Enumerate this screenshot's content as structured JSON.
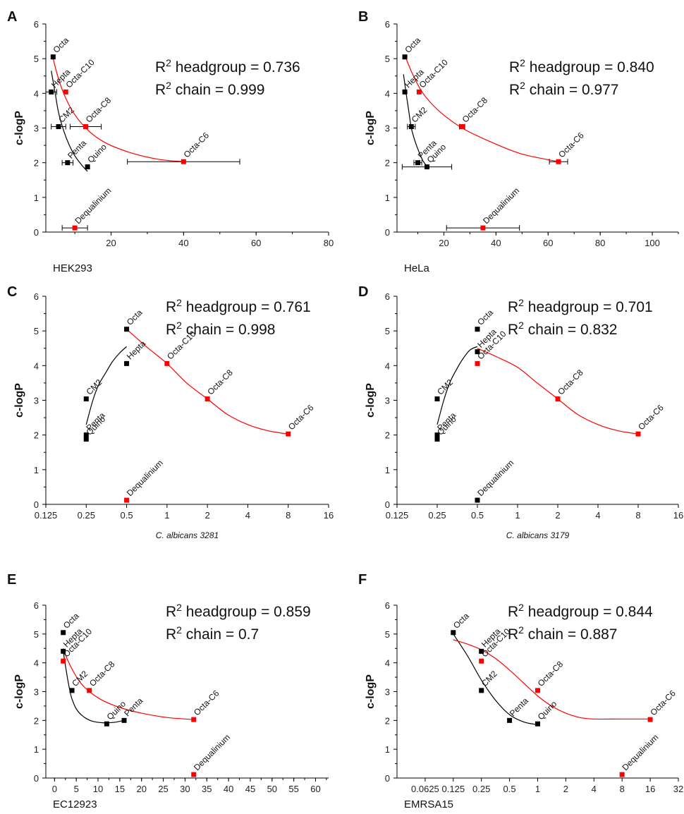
{
  "figure": {
    "panels": [
      {
        "label": "A",
        "xlabel": "HEK293",
        "ylabel": "c-logP",
        "r2_head_text": "headgroup = 0.736",
        "r2_chain_text": "chain = 0.999"
      },
      {
        "label": "B",
        "xlabel": "HeLa",
        "ylabel": "c-logP",
        "r2_head_text": "headgroup = 0.840",
        "r2_chain_text": "chain = 0.977"
      },
      {
        "label": "C",
        "xlabel": "C. albicans 3281",
        "ylabel": "c-logP",
        "r2_head_text": "headgroup = 0.761",
        "r2_chain_text": "chain = 0.998"
      },
      {
        "label": "D",
        "xlabel": "C. albicans 3179",
        "ylabel": "c-logP",
        "r2_head_text": "headgroup = 0.701",
        "r2_chain_text": "chain = 0.832"
      },
      {
        "label": "E",
        "xlabel": "EC12923",
        "ylabel": "c-logP",
        "r2_head_text": "headgroup = 0.859",
        "r2_chain_text": "chain = 0.7"
      },
      {
        "label": "F",
        "xlabel": "EMRSA15",
        "ylabel": "c-logP",
        "r2_head_text": "headgroup = 0.844",
        "r2_chain_text": "chain = 0.887"
      }
    ]
  },
  "chart_data": [
    {
      "type": "scatter",
      "panel": "A",
      "xlabel": "HEK293",
      "ylabel": "c-logP",
      "xscale": "linear",
      "xlim": [
        2,
        80
      ],
      "ylim": [
        0,
        6
      ],
      "xticks": [
        20,
        40,
        60,
        80
      ],
      "xtick_labels": [
        "20",
        "40",
        "60",
        "80"
      ],
      "yticks": [
        0,
        1,
        2,
        3,
        4,
        5,
        6
      ],
      "colors": {
        "headgroup": "#000000",
        "chain": "#ff0000"
      },
      "annotations": [
        "R2 headgroup = 0.736",
        "R2 chain = 0.999"
      ],
      "points": [
        {
          "name": "Octa",
          "x": 4,
          "y": 5.05,
          "group": "headgroup"
        },
        {
          "name": "Hepta",
          "x": 3.5,
          "y": 4.04,
          "group": "headgroup",
          "xerr": 1.5
        },
        {
          "name": "CM2",
          "x": 5.5,
          "y": 3.04,
          "group": "headgroup",
          "xerr": 2
        },
        {
          "name": "Penta",
          "x": 8,
          "y": 2.0,
          "group": "headgroup",
          "xerr": 1.5
        },
        {
          "name": "Quino",
          "x": 13.5,
          "y": 1.88,
          "group": "headgroup"
        },
        {
          "name": "Octa-C10",
          "x": 7.5,
          "y": 4.04,
          "group": "chain"
        },
        {
          "name": "Octa-C8",
          "x": 13,
          "y": 3.04,
          "group": "chain",
          "xerr": 4.3
        },
        {
          "name": "Octa-C6",
          "x": 40,
          "y": 2.03,
          "group": "chain",
          "xerr": 15.5
        },
        {
          "name": "Dequalinium",
          "x": 10,
          "y": 0.12,
          "group": "chain",
          "xerr": 3.5
        }
      ],
      "fits": [
        {
          "group": "headgroup",
          "x": [
            3.5,
            4.5,
            5.5,
            7,
            8.5,
            10,
            12,
            13.5
          ],
          "y": [
            4.65,
            4.05,
            3.45,
            2.9,
            2.5,
            2.2,
            1.92,
            1.75
          ]
        },
        {
          "group": "chain",
          "x": [
            4,
            6,
            9,
            13,
            18,
            25,
            33,
            40
          ],
          "y": [
            5.0,
            4.25,
            3.55,
            3.0,
            2.6,
            2.3,
            2.1,
            2.03
          ]
        }
      ]
    },
    {
      "type": "scatter",
      "panel": "B",
      "xlabel": "HeLa",
      "ylabel": "c-logP",
      "xscale": "linear",
      "xlim": [
        2,
        110
      ],
      "ylim": [
        0,
        6
      ],
      "xticks": [
        20,
        40,
        60,
        80,
        100
      ],
      "xtick_labels": [
        "20",
        "40",
        "60",
        "80",
        "100"
      ],
      "yticks": [
        0,
        1,
        2,
        3,
        4,
        5,
        6
      ],
      "colors": {
        "headgroup": "#000000",
        "chain": "#ff0000"
      },
      "annotations": [
        "R2 headgroup = 0.840",
        "R2 chain = 0.977"
      ],
      "points": [
        {
          "name": "Octa",
          "x": 5,
          "y": 5.05,
          "group": "headgroup"
        },
        {
          "name": "Hepta",
          "x": 5,
          "y": 4.04,
          "group": "headgroup"
        },
        {
          "name": "CM2",
          "x": 7.5,
          "y": 3.04,
          "group": "headgroup",
          "xerr": 1.5
        },
        {
          "name": "Penta",
          "x": 10,
          "y": 2.0,
          "group": "headgroup",
          "xerr": 1.5
        },
        {
          "name": "Quino",
          "x": 13.5,
          "y": 1.88,
          "group": "headgroup",
          "xerr": 9.5
        },
        {
          "name": "Octa-C10",
          "x": 10.5,
          "y": 4.04,
          "group": "chain"
        },
        {
          "name": "Octa-C8",
          "x": 27,
          "y": 3.04,
          "group": "chain",
          "xerr": 1
        },
        {
          "name": "Octa-C6",
          "x": 64,
          "y": 2.03,
          "group": "chain",
          "xerr": 3.5
        },
        {
          "name": "Dequalinium",
          "x": 35,
          "y": 0.12,
          "group": "chain",
          "xerr": 14
        }
      ],
      "fits": [
        {
          "group": "headgroup",
          "x": [
            4.5,
            5.5,
            6.5,
            7.5,
            9,
            10.5,
            12,
            13.5
          ],
          "y": [
            4.55,
            4.0,
            3.5,
            3.0,
            2.6,
            2.3,
            2.05,
            1.9
          ]
        },
        {
          "group": "chain",
          "x": [
            5,
            8,
            12,
            18,
            27,
            38,
            50,
            64
          ],
          "y": [
            5.1,
            4.55,
            4.0,
            3.5,
            3.0,
            2.6,
            2.25,
            2.03
          ]
        }
      ]
    },
    {
      "type": "scatter",
      "panel": "C",
      "xlabel": "C. albicans 3281",
      "ylabel": "c-logP",
      "xscale": "log2",
      "xlim": [
        0.125,
        16
      ],
      "ylim": [
        0,
        6
      ],
      "xticks": [
        0.125,
        0.25,
        0.5,
        1,
        2,
        4,
        8,
        16
      ],
      "xtick_labels": [
        "0.125",
        "0.25",
        "0.5",
        "1",
        "2",
        "4",
        "8",
        "16"
      ],
      "yticks": [
        0,
        1,
        2,
        3,
        4,
        5,
        6
      ],
      "colors": {
        "headgroup": "#000000",
        "chain": "#ff0000"
      },
      "annotations": [
        "R2 headgroup = 0.761",
        "R2 chain = 0.998"
      ],
      "points": [
        {
          "name": "Octa",
          "x": 0.5,
          "y": 5.05,
          "group": "headgroup"
        },
        {
          "name": "Hepta",
          "x": 0.5,
          "y": 4.06,
          "group": "headgroup"
        },
        {
          "name": "CM2",
          "x": 0.25,
          "y": 3.04,
          "group": "headgroup"
        },
        {
          "name": "Penta",
          "x": 0.25,
          "y": 2.0,
          "group": "headgroup"
        },
        {
          "name": "Quino",
          "x": 0.25,
          "y": 1.88,
          "group": "headgroup"
        },
        {
          "name": "Octa-C10",
          "x": 1,
          "y": 4.06,
          "group": "chain"
        },
        {
          "name": "Octa-C8",
          "x": 2,
          "y": 3.04,
          "group": "chain"
        },
        {
          "name": "Octa-C6",
          "x": 8,
          "y": 2.03,
          "group": "chain"
        },
        {
          "name": "Dequalinium",
          "x": 0.5,
          "y": 0.12,
          "group": "chain"
        }
      ],
      "fits": [
        {
          "group": "headgroup",
          "x": [
            0.25,
            0.28,
            0.31,
            0.35,
            0.39,
            0.44,
            0.5
          ],
          "y": [
            2.3,
            3.0,
            3.45,
            3.8,
            4.1,
            4.35,
            4.55
          ]
        },
        {
          "group": "chain",
          "x": [
            0.5,
            0.7,
            1,
            1.4,
            2,
            2.8,
            4,
            5.7,
            8
          ],
          "y": [
            5.05,
            4.55,
            4.06,
            3.5,
            3.04,
            2.6,
            2.3,
            2.12,
            2.03
          ]
        }
      ]
    },
    {
      "type": "scatter",
      "panel": "D",
      "xlabel": "C. albicans 3179",
      "ylabel": "c-logP",
      "xscale": "log2",
      "xlim": [
        0.125,
        16
      ],
      "ylim": [
        0,
        6
      ],
      "xticks": [
        0.125,
        0.25,
        0.5,
        1,
        2,
        4,
        8,
        16
      ],
      "xtick_labels": [
        "0.125",
        "0.25",
        "0.5",
        "1",
        "2",
        "4",
        "8",
        "16"
      ],
      "yticks": [
        0,
        1,
        2,
        3,
        4,
        5,
        6
      ],
      "colors": {
        "headgroup": "#000000",
        "chain": "#ff0000"
      },
      "annotations": [
        "R2 headgroup = 0.701",
        "R2 chain = 0.832"
      ],
      "points": [
        {
          "name": "Octa",
          "x": 0.5,
          "y": 5.05,
          "group": "headgroup"
        },
        {
          "name": "Hepta",
          "x": 0.5,
          "y": 4.4,
          "group": "headgroup"
        },
        {
          "name": "CM2",
          "x": 0.25,
          "y": 3.04,
          "group": "headgroup"
        },
        {
          "name": "Penta",
          "x": 0.25,
          "y": 2.0,
          "group": "headgroup"
        },
        {
          "name": "Quino",
          "x": 0.25,
          "y": 1.88,
          "group": "headgroup"
        },
        {
          "name": "Dequalinium",
          "x": 0.5,
          "y": 0.12,
          "group": "headgroup"
        },
        {
          "name": "Octa-C10",
          "x": 0.5,
          "y": 4.06,
          "group": "chain"
        },
        {
          "name": "Octa-C8",
          "x": 2,
          "y": 3.04,
          "group": "chain"
        },
        {
          "name": "Octa-C6",
          "x": 8,
          "y": 2.03,
          "group": "chain"
        }
      ],
      "fits": [
        {
          "group": "headgroup",
          "x": [
            0.25,
            0.28,
            0.31,
            0.35,
            0.39,
            0.44,
            0.5
          ],
          "y": [
            2.3,
            3.0,
            3.5,
            3.9,
            4.2,
            4.45,
            4.55
          ]
        },
        {
          "group": "chain",
          "x": [
            0.5,
            0.7,
            1,
            1.4,
            2,
            2.8,
            4,
            5.7,
            8
          ],
          "y": [
            4.5,
            4.25,
            3.95,
            3.5,
            3.04,
            2.6,
            2.3,
            2.12,
            2.03
          ]
        }
      ]
    },
    {
      "type": "scatter",
      "panel": "E",
      "xlabel": "EC12923",
      "ylabel": "c-logP",
      "xscale": "linear",
      "xlim": [
        -2,
        63
      ],
      "ylim": [
        0,
        6
      ],
      "xticks": [
        0,
        5,
        10,
        15,
        20,
        25,
        30,
        35,
        40,
        45,
        50,
        55,
        60
      ],
      "xtick_labels": [
        "0",
        "5",
        "10",
        "15",
        "20",
        "25",
        "30",
        "35",
        "40",
        "45",
        "50",
        "55",
        "60"
      ],
      "yticks": [
        0,
        1,
        2,
        3,
        4,
        5,
        6
      ],
      "colors": {
        "headgroup": "#000000",
        "chain": "#ff0000"
      },
      "annotations": [
        "R2 headgroup = 0.859",
        "R2 chain = 0.7"
      ],
      "points": [
        {
          "name": "Octa",
          "x": 2,
          "y": 5.05,
          "group": "headgroup"
        },
        {
          "name": "Hepta",
          "x": 2,
          "y": 4.4,
          "group": "headgroup"
        },
        {
          "name": "CM2",
          "x": 4,
          "y": 3.04,
          "group": "headgroup"
        },
        {
          "name": "Quino",
          "x": 12,
          "y": 1.88,
          "group": "headgroup"
        },
        {
          "name": "Penta",
          "x": 16,
          "y": 2.0,
          "group": "headgroup"
        },
        {
          "name": "Octa-C10",
          "x": 2,
          "y": 4.06,
          "group": "chain"
        },
        {
          "name": "Octa-C8",
          "x": 8,
          "y": 3.04,
          "group": "chain"
        },
        {
          "name": "Octa-C6",
          "x": 32,
          "y": 2.03,
          "group": "chain"
        },
        {
          "name": "Dequalinium",
          "x": 32,
          "y": 0.12,
          "group": "chain"
        }
      ],
      "fits": [
        {
          "group": "headgroup",
          "x": [
            2,
            2.5,
            3,
            3.5,
            4,
            5,
            6.5,
            8.5,
            11,
            13.5,
            16
          ],
          "y": [
            4.4,
            3.9,
            3.45,
            3.05,
            2.75,
            2.4,
            2.15,
            1.98,
            1.92,
            1.93,
            2.0
          ]
        },
        {
          "group": "chain",
          "x": [
            2,
            3,
            4.5,
            6,
            8,
            11,
            15,
            20,
            26,
            32
          ],
          "y": [
            4.5,
            4.1,
            3.65,
            3.3,
            3.0,
            2.7,
            2.45,
            2.25,
            2.1,
            2.03
          ]
        }
      ]
    },
    {
      "type": "scatter",
      "panel": "F",
      "xlabel": "EMRSA15",
      "ylabel": "c-logP",
      "xscale": "log2",
      "xlim": [
        0.03125,
        32
      ],
      "ylim": [
        0,
        6
      ],
      "xticks": [
        0.0625,
        0.125,
        0.25,
        0.5,
        1,
        2,
        4,
        8,
        16,
        32
      ],
      "xtick_labels": [
        "0.0625",
        "0.125",
        "0.25",
        "0.5",
        "1",
        "2",
        "4",
        "8",
        "16",
        "32"
      ],
      "yticks": [
        0,
        1,
        2,
        3,
        4,
        5,
        6
      ],
      "colors": {
        "headgroup": "#000000",
        "chain": "#ff0000"
      },
      "annotations": [
        "R2 headgroup = 0.844",
        "R2 chain = 0.887"
      ],
      "points": [
        {
          "name": "Octa",
          "x": 0.125,
          "y": 5.05,
          "group": "headgroup"
        },
        {
          "name": "Hepta",
          "x": 0.25,
          "y": 4.4,
          "group": "headgroup"
        },
        {
          "name": "CM2",
          "x": 0.25,
          "y": 3.04,
          "group": "headgroup"
        },
        {
          "name": "Penta",
          "x": 0.5,
          "y": 2.0,
          "group": "headgroup"
        },
        {
          "name": "Quino",
          "x": 1,
          "y": 1.88,
          "group": "headgroup"
        },
        {
          "name": "Octa-C10",
          "x": 0.25,
          "y": 4.06,
          "group": "chain"
        },
        {
          "name": "Octa-C8",
          "x": 1,
          "y": 3.04,
          "group": "chain"
        },
        {
          "name": "Octa-C6",
          "x": 16,
          "y": 2.03,
          "group": "chain"
        },
        {
          "name": "Dequalinium",
          "x": 8,
          "y": 0.12,
          "group": "chain"
        }
      ],
      "fits": [
        {
          "group": "headgroup",
          "x": [
            0.125,
            0.177,
            0.25,
            0.354,
            0.5,
            0.707,
            1
          ],
          "y": [
            5.0,
            4.25,
            3.4,
            2.7,
            2.2,
            1.95,
            1.85
          ]
        },
        {
          "group": "chain",
          "x": [
            0.125,
            0.177,
            0.25,
            0.354,
            0.5,
            0.707,
            1,
            1.41,
            2,
            2.83,
            4,
            8,
            16
          ],
          "y": [
            4.8,
            4.65,
            4.45,
            4.15,
            3.75,
            3.3,
            2.85,
            2.5,
            2.25,
            2.1,
            2.05,
            2.05,
            2.05
          ]
        }
      ]
    }
  ]
}
